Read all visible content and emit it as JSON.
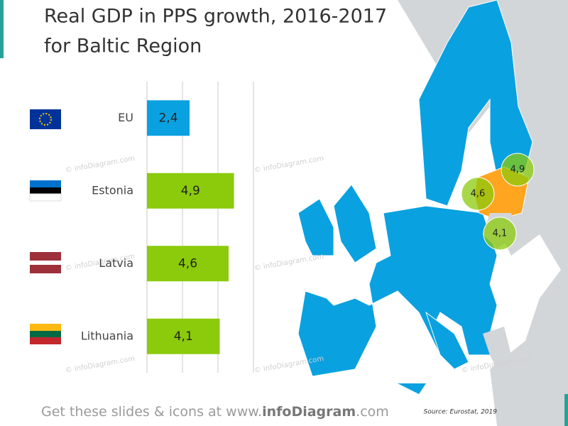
{
  "chart_data": {
    "type": "hbar",
    "title": [
      "Real GDP in PPS growth, 2016-2017",
      "for Baltic Region"
    ],
    "categories": [
      "EU",
      "Estonia",
      "Latvia",
      "Lithuania"
    ],
    "values": [
      2.4,
      4.9,
      4.6,
      4.1
    ],
    "value_labels": [
      "2,4",
      "4,9",
      "4,6",
      "4,1"
    ],
    "colors": [
      "#0aa1e0",
      "#8bcb0c",
      "#8bcb0c",
      "#8bcb0c"
    ],
    "xlim": [
      0,
      6
    ],
    "xticks": [
      0,
      2,
      4,
      6
    ],
    "grid": true,
    "watermark": "© infoDiagram.com",
    "source": "Source: Eurostat, 2019",
    "footer": [
      "Get these slides & icons at www.",
      "infoDiagram",
      ".com"
    ]
  }
}
